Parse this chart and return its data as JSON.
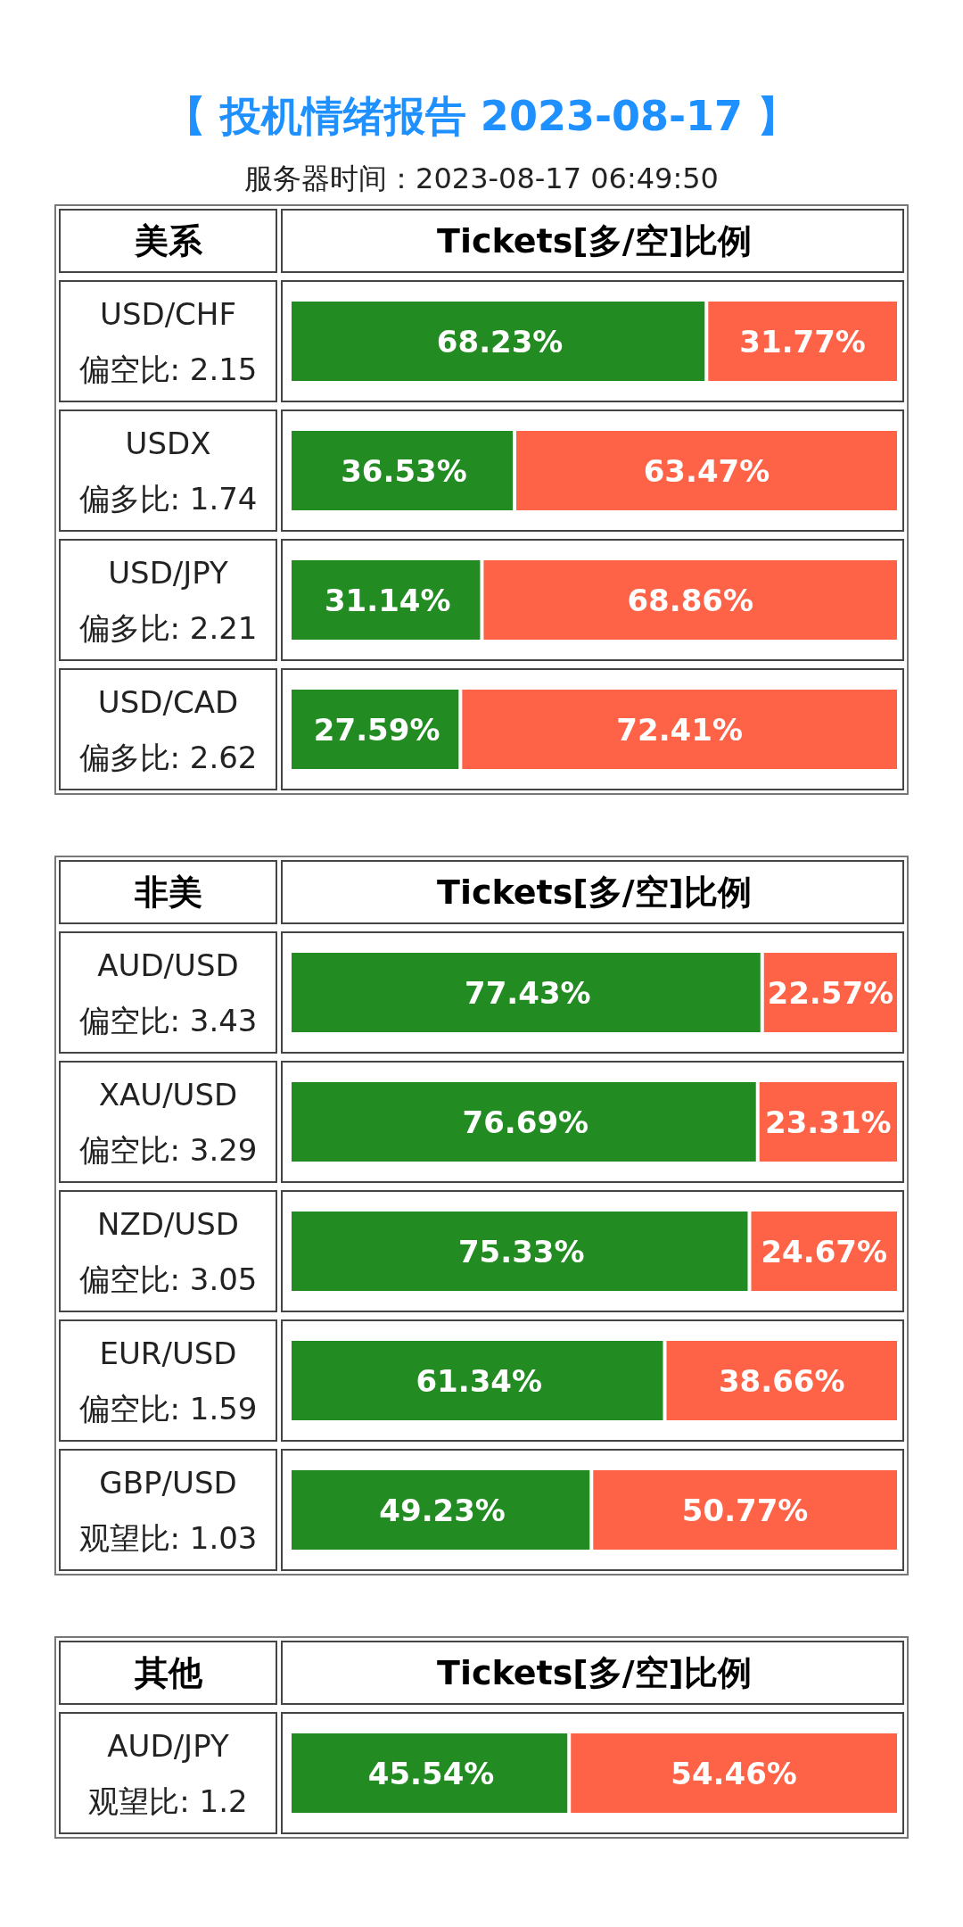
{
  "chart_data": [
    {
      "type": "bar",
      "orientation": "horizontal",
      "stacked": true,
      "title": "【 投机情绪报告 2023-08-17 】",
      "subtitle": "服务器时间：2023-08-17 06:49:50",
      "ylabel": "美系",
      "xlabel": "Tickets[多/空]比例",
      "categories": [
        "USD/CHF\n偏空比: 2.15",
        "USDX\n偏多比: 1.74",
        "USD/JPY\n偏多比: 2.21",
        "USD/CAD\n偏多比: 2.62"
      ],
      "series": [
        {
          "color": "#228b22",
          "values": [
            68.23,
            36.53,
            31.14,
            27.59
          ],
          "value_labels": [
            "68.23%",
            "36.53%",
            "31.14%",
            "27.59%"
          ]
        },
        {
          "color": "#ff6347",
          "values": [
            31.77,
            63.47,
            68.86,
            72.41
          ],
          "value_labels": [
            "31.77%",
            "63.47%",
            "68.86%",
            "72.41%"
          ]
        }
      ]
    },
    {
      "type": "bar",
      "orientation": "horizontal",
      "stacked": true,
      "ylabel": "非美",
      "xlabel": "Tickets[多/空]比例",
      "categories": [
        "AUD/USD\n偏空比: 3.43",
        "XAU/USD\n偏空比: 3.29",
        "NZD/USD\n偏空比: 3.05",
        "EUR/USD\n偏空比: 1.59",
        "GBP/USD\n观望比: 1.03"
      ],
      "series": [
        {
          "color": "#228b22",
          "values": [
            77.43,
            76.69,
            75.33,
            61.34,
            49.23
          ],
          "value_labels": [
            "77.43%",
            "76.69%",
            "75.33%",
            "61.34%",
            "49.23%"
          ]
        },
        {
          "color": "#ff6347",
          "values": [
            22.57,
            23.31,
            24.67,
            38.66,
            50.77
          ],
          "value_labels": [
            "22.57%",
            "23.31%",
            "24.67%",
            "38.66%",
            "50.77%"
          ]
        }
      ]
    },
    {
      "type": "bar",
      "orientation": "horizontal",
      "stacked": true,
      "ylabel": "其他",
      "xlabel": "Tickets[多/空]比例",
      "categories": [
        "AUD/JPY\n观望比: 1.2"
      ],
      "series": [
        {
          "color": "#228b22",
          "values": [
            45.54
          ],
          "value_labels": [
            "45.54%"
          ]
        },
        {
          "color": "#ff6347",
          "values": [
            54.46
          ],
          "value_labels": [
            "54.46%"
          ]
        }
      ]
    }
  ]
}
